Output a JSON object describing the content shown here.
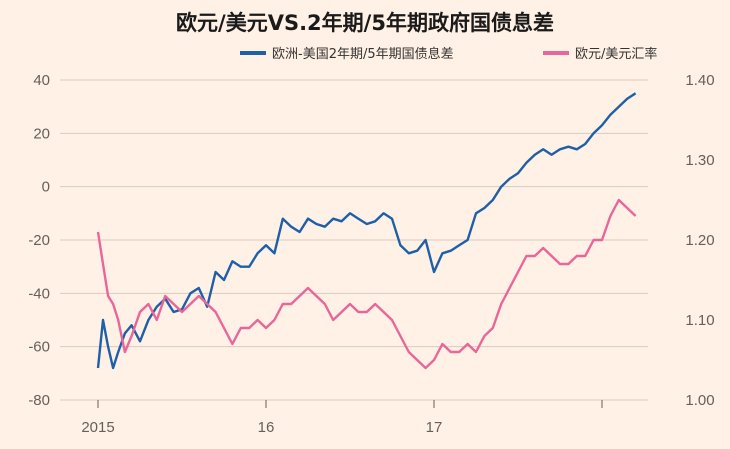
{
  "chart_data": {
    "type": "line",
    "title": "欧元/美元VS.2年期/5年期政府国债息差",
    "legend_position": "top",
    "grid": true,
    "x_ticks": [
      "2015",
      "16",
      "17"
    ],
    "left_axis": {
      "ylim": [
        -80,
        40
      ],
      "ticks": [
        "40",
        "20",
        "0",
        "-20",
        "-40",
        "-60",
        "-80"
      ]
    },
    "right_axis": {
      "ylim": [
        1.0,
        1.4
      ],
      "ticks": [
        "1.40",
        "1.30",
        "1.20",
        "1.10",
        "1.00"
      ]
    },
    "series": [
      {
        "name": "欧洲-美国2年期/5年期国债息差",
        "axis": "left",
        "color": "#1f5fa8",
        "x": [
          2015.0,
          2015.03,
          2015.06,
          2015.09,
          2015.12,
          2015.16,
          2015.2,
          2015.25,
          2015.3,
          2015.35,
          2015.4,
          2015.45,
          2015.5,
          2015.55,
          2015.6,
          2015.65,
          2015.7,
          2015.75,
          2015.8,
          2015.85,
          2015.9,
          2015.95,
          2016.0,
          2016.05,
          2016.1,
          2016.15,
          2016.2,
          2016.25,
          2016.3,
          2016.35,
          2016.4,
          2016.45,
          2016.5,
          2016.55,
          2016.6,
          2016.65,
          2016.7,
          2016.75,
          2016.8,
          2016.85,
          2016.9,
          2016.95,
          2017.0,
          2017.05,
          2017.1,
          2017.15,
          2017.2,
          2017.25,
          2017.3,
          2017.35,
          2017.4,
          2017.45,
          2017.5,
          2017.55,
          2017.6,
          2017.65,
          2017.7,
          2017.75,
          2017.8,
          2017.85,
          2017.9,
          2017.95,
          2018.0,
          2018.05,
          2018.1,
          2018.15,
          2018.2
        ],
        "values": [
          -68,
          -50,
          -60,
          -68,
          -62,
          -55,
          -52,
          -58,
          -50,
          -45,
          -42,
          -47,
          -46,
          -40,
          -38,
          -45,
          -32,
          -35,
          -28,
          -30,
          -30,
          -25,
          -22,
          -25,
          -12,
          -15,
          -17,
          -12,
          -14,
          -15,
          -12,
          -13,
          -10,
          -12,
          -14,
          -13,
          -10,
          -12,
          -22,
          -25,
          -24,
          -20,
          -32,
          -25,
          -24,
          -22,
          -20,
          -10,
          -8,
          -5,
          0,
          3,
          5,
          9,
          12,
          14,
          12,
          14,
          15,
          14,
          16,
          20,
          23,
          27,
          30,
          33,
          35
        ]
      },
      {
        "name": "欧元/美元汇率",
        "axis": "right",
        "color": "#e8669a",
        "x": [
          2015.0,
          2015.03,
          2015.06,
          2015.09,
          2015.12,
          2015.16,
          2015.2,
          2015.25,
          2015.3,
          2015.35,
          2015.4,
          2015.45,
          2015.5,
          2015.55,
          2015.6,
          2015.65,
          2015.7,
          2015.75,
          2015.8,
          2015.85,
          2015.9,
          2015.95,
          2016.0,
          2016.05,
          2016.1,
          2016.15,
          2016.2,
          2016.25,
          2016.3,
          2016.35,
          2016.4,
          2016.45,
          2016.5,
          2016.55,
          2016.6,
          2016.65,
          2016.7,
          2016.75,
          2016.8,
          2016.85,
          2016.9,
          2016.95,
          2017.0,
          2017.05,
          2017.1,
          2017.15,
          2017.2,
          2017.25,
          2017.3,
          2017.35,
          2017.4,
          2017.45,
          2017.5,
          2017.55,
          2017.6,
          2017.65,
          2017.7,
          2017.75,
          2017.8,
          2017.85,
          2017.9,
          2017.95,
          2018.0,
          2018.05,
          2018.1,
          2018.15,
          2018.2
        ],
        "values": [
          1.21,
          1.17,
          1.13,
          1.12,
          1.1,
          1.06,
          1.08,
          1.11,
          1.12,
          1.1,
          1.13,
          1.12,
          1.11,
          1.12,
          1.13,
          1.12,
          1.11,
          1.09,
          1.07,
          1.09,
          1.09,
          1.1,
          1.09,
          1.1,
          1.12,
          1.12,
          1.13,
          1.14,
          1.13,
          1.12,
          1.1,
          1.11,
          1.12,
          1.11,
          1.11,
          1.12,
          1.11,
          1.1,
          1.08,
          1.06,
          1.05,
          1.04,
          1.05,
          1.07,
          1.06,
          1.06,
          1.07,
          1.06,
          1.08,
          1.09,
          1.12,
          1.14,
          1.16,
          1.18,
          1.18,
          1.19,
          1.18,
          1.17,
          1.17,
          1.18,
          1.18,
          1.2,
          1.2,
          1.23,
          1.25,
          1.24,
          1.23
        ]
      }
    ]
  }
}
